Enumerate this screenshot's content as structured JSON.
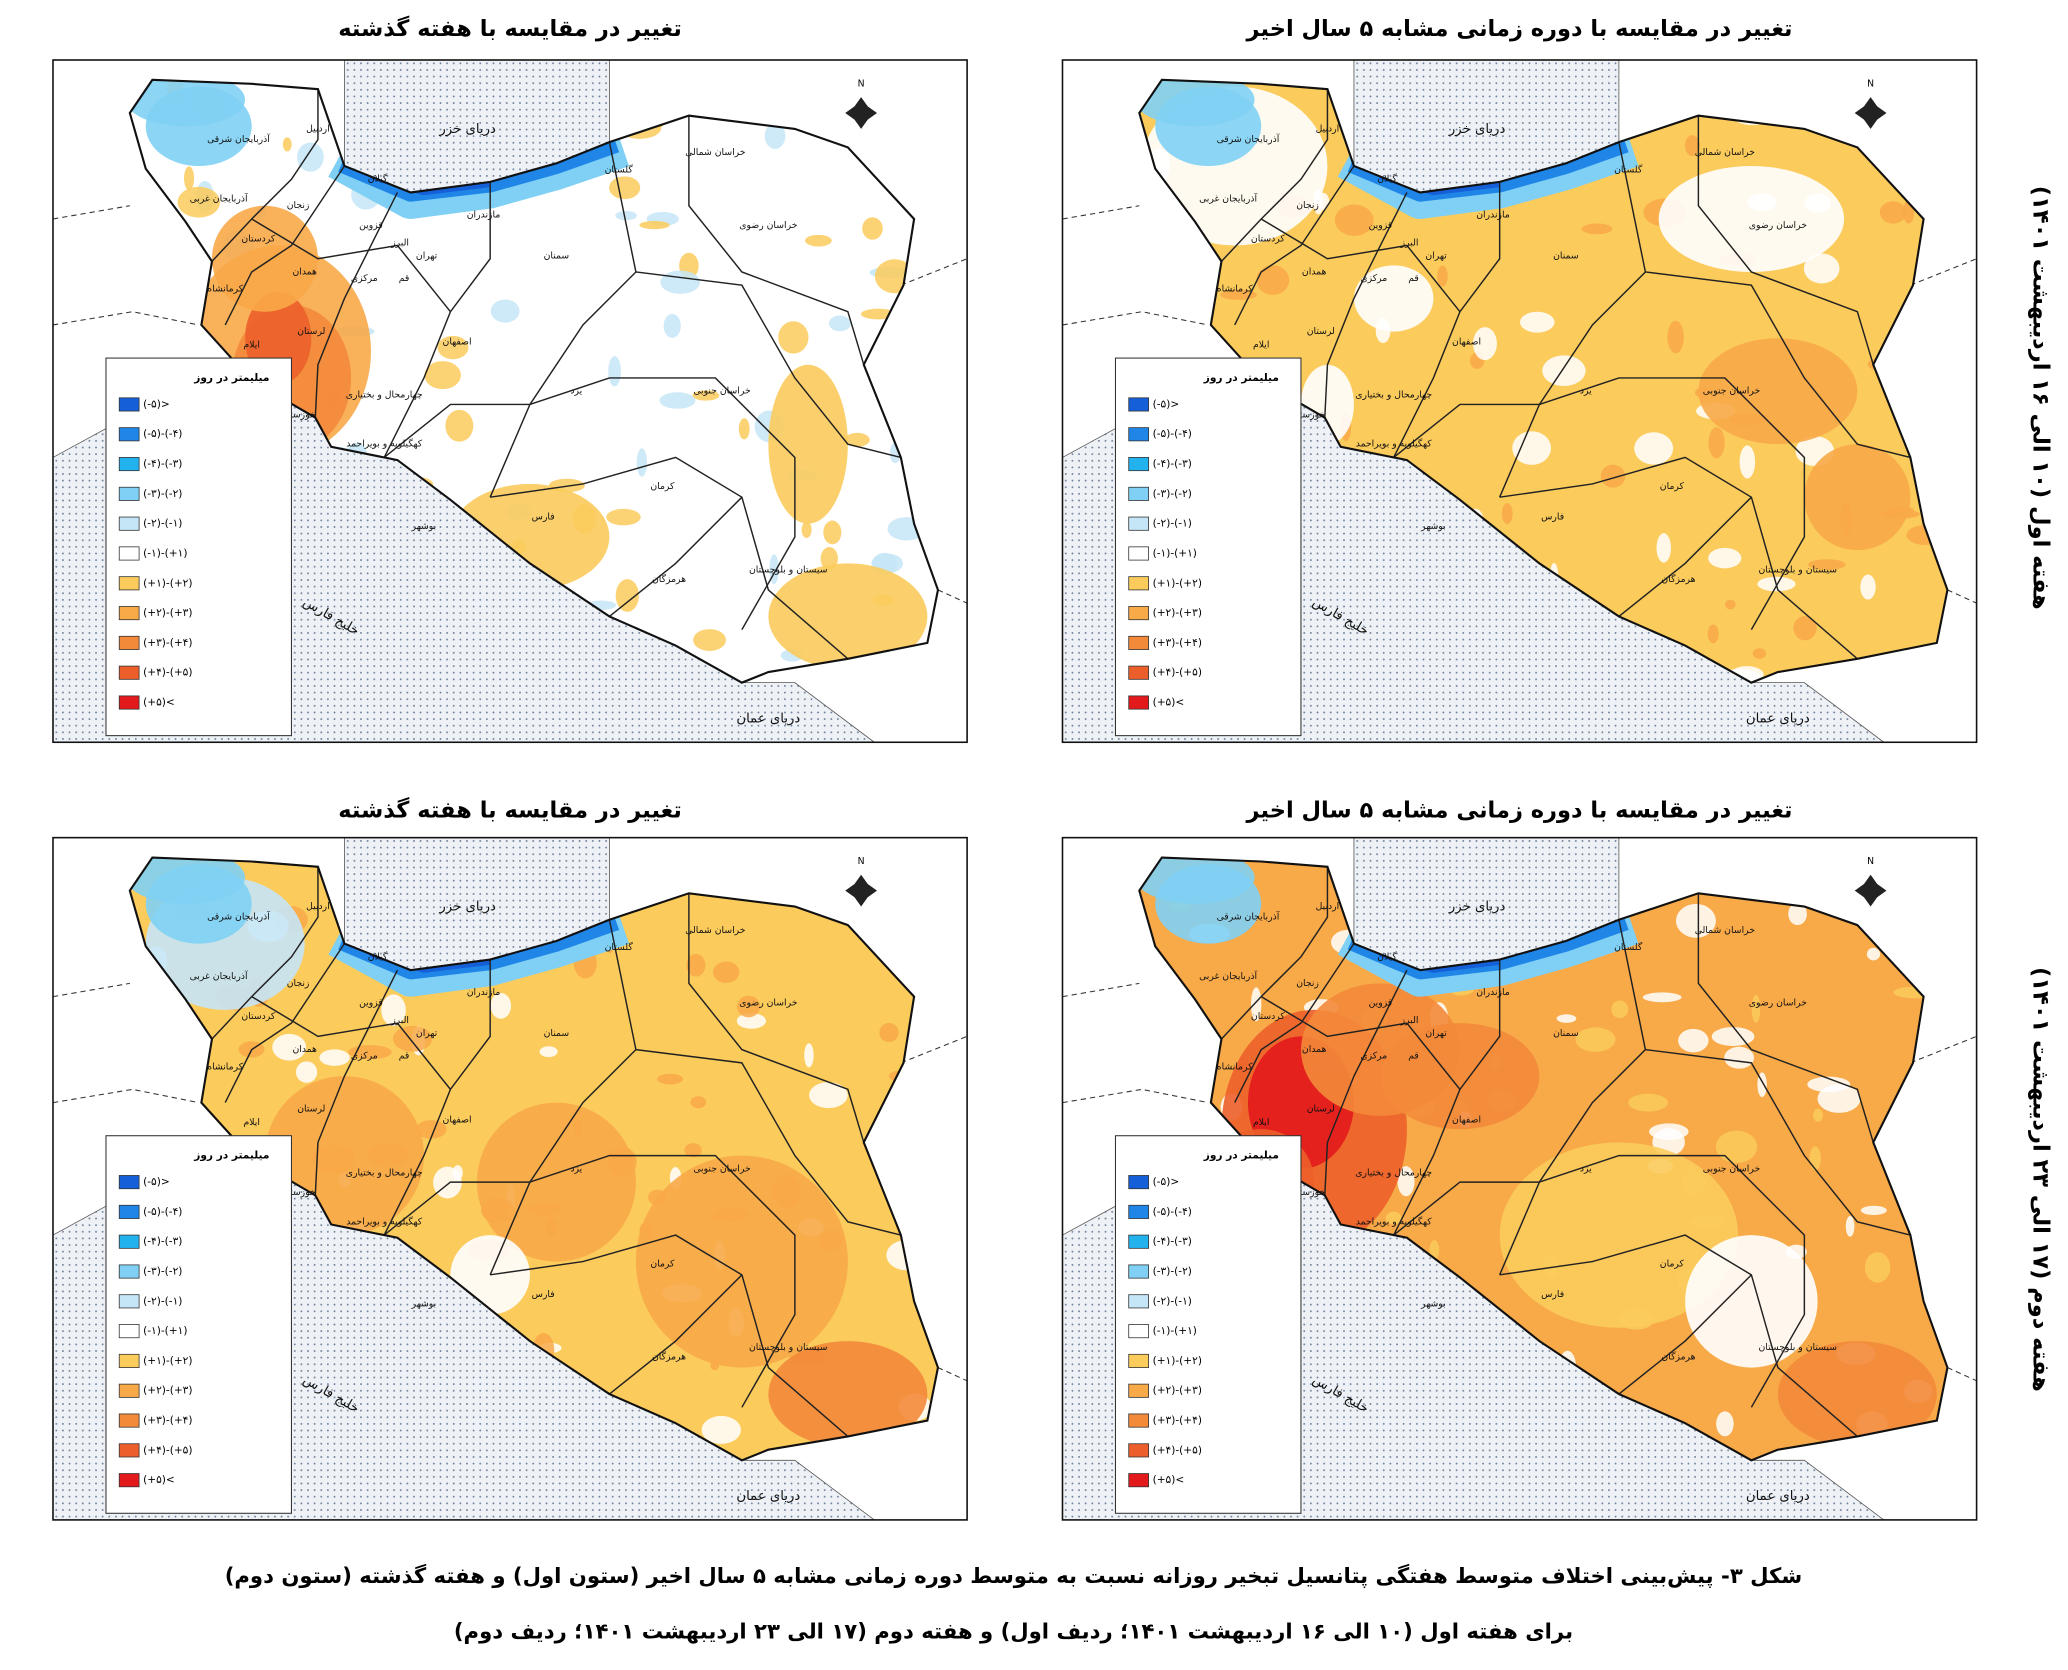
{
  "panels": [
    {
      "title": "تغییر در مقایسه با دوره زمانی مشابه ۵ سال اخیر"
    },
    {
      "title": "تغییر در مقایسه با هفته گذشته"
    },
    {
      "title": "تغییر در مقایسه با دوره زمانی مشابه ۵ سال اخیر"
    },
    {
      "title": "تغییر در مقایسه با هفته گذشته"
    }
  ],
  "row_labels": [
    "هفته اول (۱۰ الی ۱۶ اردیبهشت ۱۴۰۱)",
    "هفته دوم (۱۷ الی ۲۳ اردیبهشت ۱۴۰۱)"
  ],
  "legend": {
    "title": "میلیمتر در روز",
    "items": [
      {
        "label": "(-۵)>",
        "color": "#1560d8"
      },
      {
        "label": "(-۵)-(-۴)",
        "color": "#1f86e8"
      },
      {
        "label": "(-۴)-(-۳)",
        "color": "#22b2ee"
      },
      {
        "label": "(-۳)-(-۲)",
        "color": "#7fd0f4"
      },
      {
        "label": "(-۲)-(-۱)",
        "color": "#c5e6f7"
      },
      {
        "label": "(-۱)-(+۱)",
        "color": "#ffffff"
      },
      {
        "label": "(+۱)-(+۲)",
        "color": "#fbcb5c"
      },
      {
        "label": "(+۲)-(+۳)",
        "color": "#f8a948"
      },
      {
        "label": "(+۳)-(+۴)",
        "color": "#f38a3a"
      },
      {
        "label": "(+۴)-(+۵)",
        "color": "#ec5f2a"
      },
      {
        "label": "(+۵)<",
        "color": "#e31a1c"
      }
    ]
  },
  "compass": "N",
  "place_labels": [
    "دریای خزر",
    "اردبیل",
    "آذربایجان شرقی",
    "آذربایجان غربی",
    "گیلان",
    "مازندران",
    "گلستان",
    "خراسان شمالی",
    "خراسان رضوی",
    "زنجان",
    "قزوین",
    "البرز",
    "تهران",
    "سمنان",
    "کردستان",
    "همدان",
    "مرکزی",
    "قم",
    "کرمانشاه",
    "لرستان",
    "ایلام",
    "اصفهان",
    "خراسان جنوبی",
    "یزد",
    "چهارمحال و بختیاری",
    "خوزستان",
    "کهگیلویه و بویراحمد",
    "کرمان",
    "فارس",
    "بوشهر",
    "سیستان و بلوچستان",
    "هرمزگان",
    "خلیج فارس",
    "دریای عمان"
  ],
  "caption": [
    "شکل ۳- پیش‌بینی اختلاف متوسط هفتگی پتانسیل تبخیر روزانه نسبت به متوسط دوره زمانی مشابه ۵ سال اخیر (ستون اول) و هفته گذشته (ستون دوم)",
    "برای هفته اول (۱۰ الی ۱۶ اردیبهشت ۱۴۰۱؛ ردیف اول) و هفته دوم (۱۷ الی ۲۳ اردیبهشت ۱۴۰۱؛ ردیف دوم)"
  ]
}
